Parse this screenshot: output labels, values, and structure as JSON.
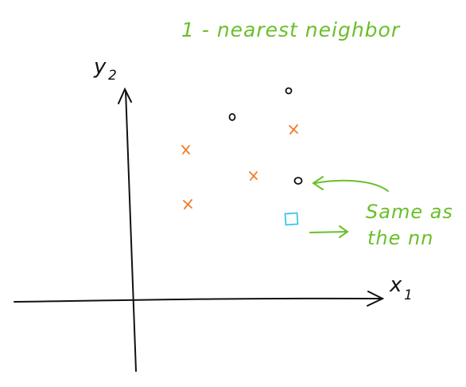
{
  "title": "1 - nearest neighbor",
  "axes": {
    "x_label_var": "x",
    "x_label_sub": "1",
    "y_label_var": "y",
    "y_label_sub": "2"
  },
  "annotations": {
    "circle_note_line1": "Same as",
    "circle_note_line2": "the nn"
  },
  "colors": {
    "ink": "#111111",
    "cross": "#f07a2a",
    "query": "#3ec5e6",
    "annotation": "#6abf2a"
  },
  "legend": {
    "circle_class": "circle",
    "cross_class": "cross",
    "query_class": "query-square"
  }
}
